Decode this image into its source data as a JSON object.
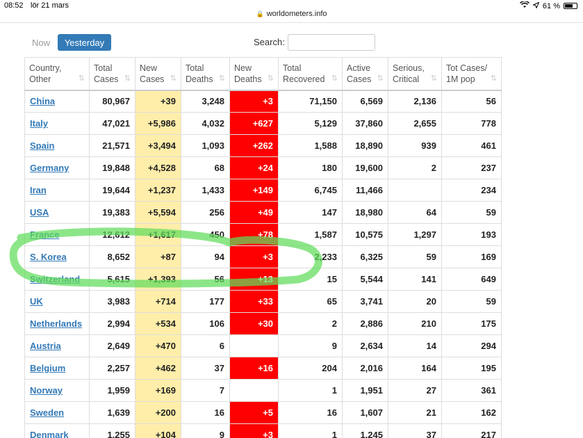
{
  "status": {
    "time": "08:52",
    "date": "lör 21 mars",
    "battery": "61 %"
  },
  "browser": {
    "url": "worldometers.info"
  },
  "controls": {
    "now_label": "Now",
    "yesterday_label": "Yesterday",
    "search_label": "Search:",
    "search_value": ""
  },
  "table": {
    "headers": [
      [
        "Country,",
        "Other"
      ],
      [
        "Total",
        "Cases"
      ],
      [
        "New",
        "Cases"
      ],
      [
        "Total",
        "Deaths"
      ],
      [
        "New",
        "Deaths"
      ],
      [
        "Total",
        "Recovered"
      ],
      [
        "Active",
        "Cases"
      ],
      [
        "Serious,",
        "Critical"
      ],
      [
        "Tot Cases/",
        "1M pop"
      ]
    ],
    "rows": [
      [
        "China",
        "80,967",
        "+39",
        "3,248",
        "+3",
        "71,150",
        "6,569",
        "2,136",
        "56"
      ],
      [
        "Italy",
        "47,021",
        "+5,986",
        "4,032",
        "+627",
        "5,129",
        "37,860",
        "2,655",
        "778"
      ],
      [
        "Spain",
        "21,571",
        "+3,494",
        "1,093",
        "+262",
        "1,588",
        "18,890",
        "939",
        "461"
      ],
      [
        "Germany",
        "19,848",
        "+4,528",
        "68",
        "+24",
        "180",
        "19,600",
        "2",
        "237"
      ],
      [
        "Iran",
        "19,644",
        "+1,237",
        "1,433",
        "+149",
        "6,745",
        "11,466",
        "",
        "234"
      ],
      [
        "USA",
        "19,383",
        "+5,594",
        "256",
        "+49",
        "147",
        "18,980",
        "64",
        "59"
      ],
      [
        "France",
        "12,612",
        "+1,617",
        "450",
        "+78",
        "1,587",
        "10,575",
        "1,297",
        "193"
      ],
      [
        "S. Korea",
        "8,652",
        "+87",
        "94",
        "+3",
        "2,233",
        "6,325",
        "59",
        "169"
      ],
      [
        "Switzerland",
        "5,615",
        "+1,393",
        "56",
        "+13",
        "15",
        "5,544",
        "141",
        "649"
      ],
      [
        "UK",
        "3,983",
        "+714",
        "177",
        "+33",
        "65",
        "3,741",
        "20",
        "59"
      ],
      [
        "Netherlands",
        "2,994",
        "+534",
        "106",
        "+30",
        "2",
        "2,886",
        "210",
        "175"
      ],
      [
        "Austria",
        "2,649",
        "+470",
        "6",
        "",
        "9",
        "2,634",
        "14",
        "294"
      ],
      [
        "Belgium",
        "2,257",
        "+462",
        "37",
        "+16",
        "204",
        "2,016",
        "164",
        "195"
      ],
      [
        "Norway",
        "1,959",
        "+169",
        "7",
        "",
        "1",
        "1,951",
        "27",
        "361"
      ],
      [
        "Sweden",
        "1,639",
        "+200",
        "16",
        "+5",
        "16",
        "1,607",
        "21",
        "162"
      ],
      [
        "Denmark",
        "1,255",
        "+104",
        "9",
        "+3",
        "1",
        "1,245",
        "37",
        "217"
      ]
    ]
  },
  "colors": {
    "new_cases_bg": "#ffeeaa",
    "new_deaths_bg": "#ff0000",
    "link": "#337ab7",
    "button": "#337ab7",
    "highlight": "#5fdc5a"
  }
}
